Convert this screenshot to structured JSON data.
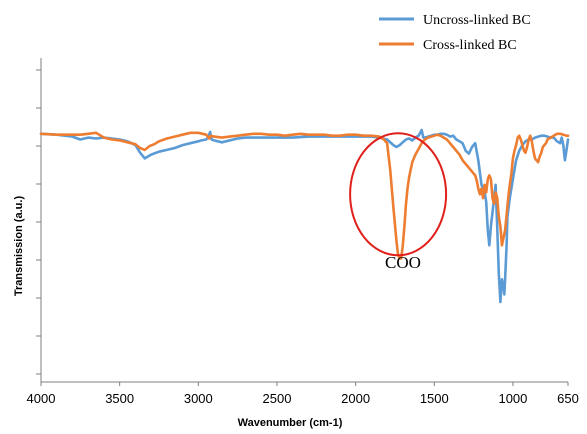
{
  "chart_data": {
    "type": "line",
    "xlabel": "Wavenumber (cm-1)",
    "ylabel": "Transmission (a.u.)",
    "xlim": [
      4000,
      650
    ],
    "ylim": [
      0,
      100
    ],
    "x_reversed": true,
    "x_ticks": [
      4000,
      3500,
      3000,
      2500,
      2000,
      1500,
      1000,
      650
    ],
    "y_ticks_labeled": false,
    "grid": false,
    "legend_position": "top-right",
    "series": [
      {
        "name": "Uncross-linked BC",
        "color": "#5b9bd5",
        "points": [
          [
            4000,
            89
          ],
          [
            3900,
            88.5
          ],
          [
            3800,
            87.5
          ],
          [
            3750,
            86
          ],
          [
            3700,
            87
          ],
          [
            3650,
            86.5
          ],
          [
            3600,
            87
          ],
          [
            3550,
            86.5
          ],
          [
            3500,
            86
          ],
          [
            3450,
            85
          ],
          [
            3400,
            83
          ],
          [
            3370,
            79
          ],
          [
            3340,
            76
          ],
          [
            3300,
            78
          ],
          [
            3250,
            79.5
          ],
          [
            3200,
            80.5
          ],
          [
            3150,
            81.5
          ],
          [
            3100,
            83
          ],
          [
            3050,
            84
          ],
          [
            3000,
            85
          ],
          [
            2980,
            85.5
          ],
          [
            2950,
            86
          ],
          [
            2935,
            87.5
          ],
          [
            2925,
            90
          ],
          [
            2915,
            86
          ],
          [
            2900,
            85.5
          ],
          [
            2850,
            84.5
          ],
          [
            2800,
            85.5
          ],
          [
            2750,
            86.5
          ],
          [
            2700,
            87
          ],
          [
            2600,
            87
          ],
          [
            2500,
            87
          ],
          [
            2400,
            87
          ],
          [
            2300,
            87.5
          ],
          [
            2200,
            87.5
          ],
          [
            2100,
            87.5
          ],
          [
            2000,
            87.5
          ],
          [
            1900,
            87.5
          ],
          [
            1850,
            87
          ],
          [
            1800,
            86
          ],
          [
            1760,
            83
          ],
          [
            1740,
            82
          ],
          [
            1720,
            83
          ],
          [
            1700,
            84.5
          ],
          [
            1680,
            86
          ],
          [
            1660,
            86.5
          ],
          [
            1640,
            85.5
          ],
          [
            1620,
            87
          ],
          [
            1600,
            88
          ],
          [
            1580,
            91
          ],
          [
            1570,
            87
          ],
          [
            1560,
            87
          ],
          [
            1540,
            87.5
          ],
          [
            1520,
            88
          ],
          [
            1500,
            88.5
          ],
          [
            1480,
            88.5
          ],
          [
            1460,
            89
          ],
          [
            1440,
            89
          ],
          [
            1420,
            88.5
          ],
          [
            1400,
            87.5
          ],
          [
            1380,
            88
          ],
          [
            1360,
            86
          ],
          [
            1340,
            85
          ],
          [
            1320,
            84
          ],
          [
            1300,
            80
          ],
          [
            1280,
            78.5
          ],
          [
            1260,
            82
          ],
          [
            1240,
            84
          ],
          [
            1220,
            75
          ],
          [
            1200,
            62
          ],
          [
            1180,
            58
          ],
          [
            1170,
            53
          ],
          [
            1160,
            38
          ],
          [
            1150,
            30
          ],
          [
            1140,
            40
          ],
          [
            1120,
            55
          ],
          [
            1110,
            62
          ],
          [
            1100,
            40
          ],
          [
            1090,
            15
          ],
          [
            1080,
            0
          ],
          [
            1070,
            12
          ],
          [
            1060,
            8
          ],
          [
            1055,
            4
          ],
          [
            1050,
            12
          ],
          [
            1040,
            30
          ],
          [
            1035,
            45
          ],
          [
            1020,
            55
          ],
          [
            1000,
            65
          ],
          [
            980,
            75
          ],
          [
            960,
            80
          ],
          [
            940,
            83
          ],
          [
            920,
            85
          ],
          [
            900,
            86
          ],
          [
            880,
            86
          ],
          [
            860,
            87
          ],
          [
            840,
            87.5
          ],
          [
            820,
            88
          ],
          [
            800,
            88
          ],
          [
            780,
            87.5
          ],
          [
            760,
            87
          ],
          [
            740,
            87
          ],
          [
            720,
            85
          ],
          [
            700,
            84
          ],
          [
            690,
            87
          ],
          [
            680,
            83
          ],
          [
            670,
            75
          ],
          [
            660,
            80
          ],
          [
            650,
            86
          ]
        ]
      },
      {
        "name": "Cross-linked BC",
        "color": "#ed7d31",
        "points": [
          [
            4000,
            89
          ],
          [
            3900,
            88.5
          ],
          [
            3800,
            88.5
          ],
          [
            3750,
            88.5
          ],
          [
            3700,
            89
          ],
          [
            3650,
            89.5
          ],
          [
            3620,
            88
          ],
          [
            3600,
            87
          ],
          [
            3550,
            86
          ],
          [
            3500,
            85.5
          ],
          [
            3450,
            84.5
          ],
          [
            3400,
            83.5
          ],
          [
            3370,
            81.5
          ],
          [
            3340,
            80.5
          ],
          [
            3310,
            82.5
          ],
          [
            3280,
            83.5
          ],
          [
            3250,
            85
          ],
          [
            3200,
            86.5
          ],
          [
            3150,
            87.5
          ],
          [
            3100,
            88.5
          ],
          [
            3050,
            89.5
          ],
          [
            3000,
            89.5
          ],
          [
            2950,
            88.5
          ],
          [
            2930,
            86.5
          ],
          [
            2920,
            88
          ],
          [
            2900,
            87.5
          ],
          [
            2850,
            87
          ],
          [
            2800,
            87.5
          ],
          [
            2750,
            88
          ],
          [
            2700,
            88.5
          ],
          [
            2650,
            89
          ],
          [
            2600,
            89
          ],
          [
            2550,
            88.5
          ],
          [
            2500,
            88.5
          ],
          [
            2450,
            88
          ],
          [
            2400,
            88.5
          ],
          [
            2350,
            89
          ],
          [
            2300,
            88.5
          ],
          [
            2250,
            88.5
          ],
          [
            2200,
            88.5
          ],
          [
            2150,
            88
          ],
          [
            2100,
            88
          ],
          [
            2050,
            88.5
          ],
          [
            2000,
            88.5
          ],
          [
            1950,
            88
          ],
          [
            1900,
            88
          ],
          [
            1850,
            87.5
          ],
          [
            1820,
            86
          ],
          [
            1800,
            84
          ],
          [
            1780,
            70
          ],
          [
            1760,
            50
          ],
          [
            1740,
            32
          ],
          [
            1730,
            25
          ],
          [
            1720,
            23
          ],
          [
            1710,
            23
          ],
          [
            1700,
            30
          ],
          [
            1690,
            40
          ],
          [
            1680,
            52
          ],
          [
            1670,
            60
          ],
          [
            1660,
            66
          ],
          [
            1650,
            70
          ],
          [
            1640,
            74
          ],
          [
            1620,
            78
          ],
          [
            1600,
            81
          ],
          [
            1580,
            84
          ],
          [
            1560,
            86
          ],
          [
            1540,
            87
          ],
          [
            1520,
            87.5
          ],
          [
            1500,
            88
          ],
          [
            1480,
            88.5
          ],
          [
            1460,
            88
          ],
          [
            1440,
            87
          ],
          [
            1420,
            86
          ],
          [
            1400,
            84
          ],
          [
            1380,
            82
          ],
          [
            1360,
            80
          ],
          [
            1340,
            78
          ],
          [
            1320,
            75
          ],
          [
            1300,
            73
          ],
          [
            1280,
            71
          ],
          [
            1260,
            69
          ],
          [
            1240,
            67
          ],
          [
            1230,
            64
          ],
          [
            1220,
            60
          ],
          [
            1210,
            57
          ],
          [
            1200,
            60
          ],
          [
            1190,
            55
          ],
          [
            1180,
            62
          ],
          [
            1170,
            58
          ],
          [
            1160,
            65
          ],
          [
            1150,
            67
          ],
          [
            1140,
            65
          ],
          [
            1130,
            55
          ],
          [
            1120,
            52
          ],
          [
            1110,
            58
          ],
          [
            1100,
            55
          ],
          [
            1090,
            45
          ],
          [
            1080,
            40
          ],
          [
            1070,
            30
          ],
          [
            1060,
            34
          ],
          [
            1050,
            38
          ],
          [
            1040,
            46
          ],
          [
            1030,
            55
          ],
          [
            1020,
            62
          ],
          [
            1010,
            68
          ],
          [
            1000,
            76
          ],
          [
            990,
            80
          ],
          [
            980,
            83
          ],
          [
            970,
            87
          ],
          [
            960,
            88
          ],
          [
            950,
            86
          ],
          [
            940,
            83
          ],
          [
            930,
            80
          ],
          [
            920,
            79
          ],
          [
            910,
            82
          ],
          [
            900,
            86
          ],
          [
            890,
            88
          ],
          [
            880,
            85
          ],
          [
            870,
            80
          ],
          [
            860,
            76
          ],
          [
            850,
            75
          ],
          [
            840,
            74
          ],
          [
            830,
            77
          ],
          [
            820,
            79
          ],
          [
            810,
            82
          ],
          [
            800,
            83
          ],
          [
            790,
            84
          ],
          [
            780,
            86
          ],
          [
            770,
            86.5
          ],
          [
            760,
            87
          ],
          [
            740,
            88
          ],
          [
            720,
            89
          ],
          [
            700,
            89
          ],
          [
            680,
            88.5
          ],
          [
            660,
            88
          ],
          [
            650,
            88
          ]
        ]
      }
    ],
    "annotations": [
      {
        "text": "COO",
        "x": 1720,
        "y": 18
      }
    ],
    "highlight_ellipse": {
      "center": [
        1730,
        57
      ],
      "radius_x": 260,
      "radius_y": 33,
      "color": "#e0201b"
    }
  }
}
